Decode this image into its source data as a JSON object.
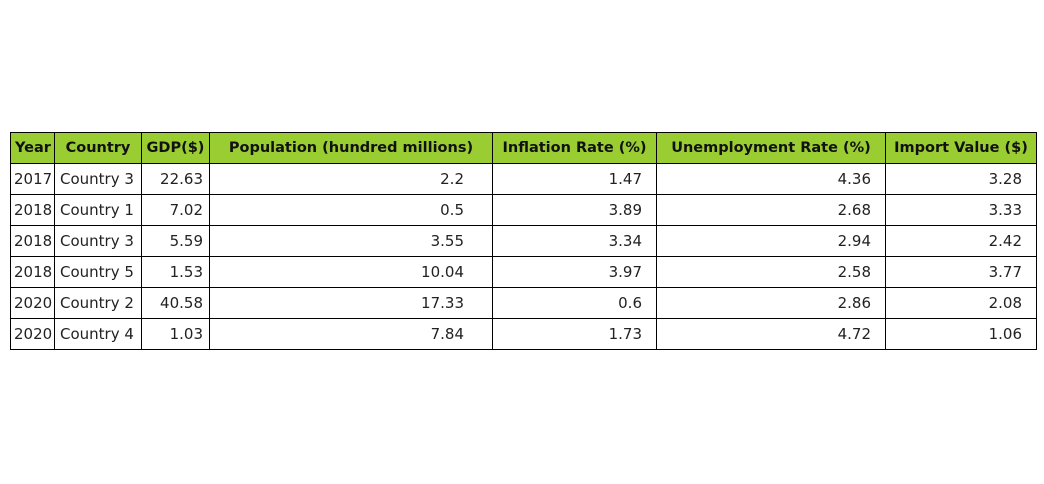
{
  "chart_data": {
    "type": "table",
    "header_color": "#9acd32",
    "columns": [
      "Year",
      "Country",
      "GDP($)",
      "Population (hundred millions)",
      "Inflation Rate (%)",
      "Unemployment Rate (%)",
      "Import Value ($)"
    ],
    "rows": [
      [
        "2017",
        "Country 3",
        "22.63",
        "2.2",
        "1.47",
        "4.36",
        "3.28"
      ],
      [
        "2018",
        "Country 1",
        "7.02",
        "0.5",
        "3.89",
        "2.68",
        "3.33"
      ],
      [
        "2018",
        "Country 3",
        "5.59",
        "3.55",
        "3.34",
        "2.94",
        "2.42"
      ],
      [
        "2018",
        "Country 5",
        "1.53",
        "10.04",
        "3.97",
        "2.58",
        "3.77"
      ],
      [
        "2020",
        "Country 2",
        "40.58",
        "17.33",
        "0.6",
        "2.86",
        "2.08"
      ],
      [
        "2020",
        "Country 4",
        "1.03",
        "7.84",
        "1.73",
        "4.72",
        "1.06"
      ]
    ]
  }
}
